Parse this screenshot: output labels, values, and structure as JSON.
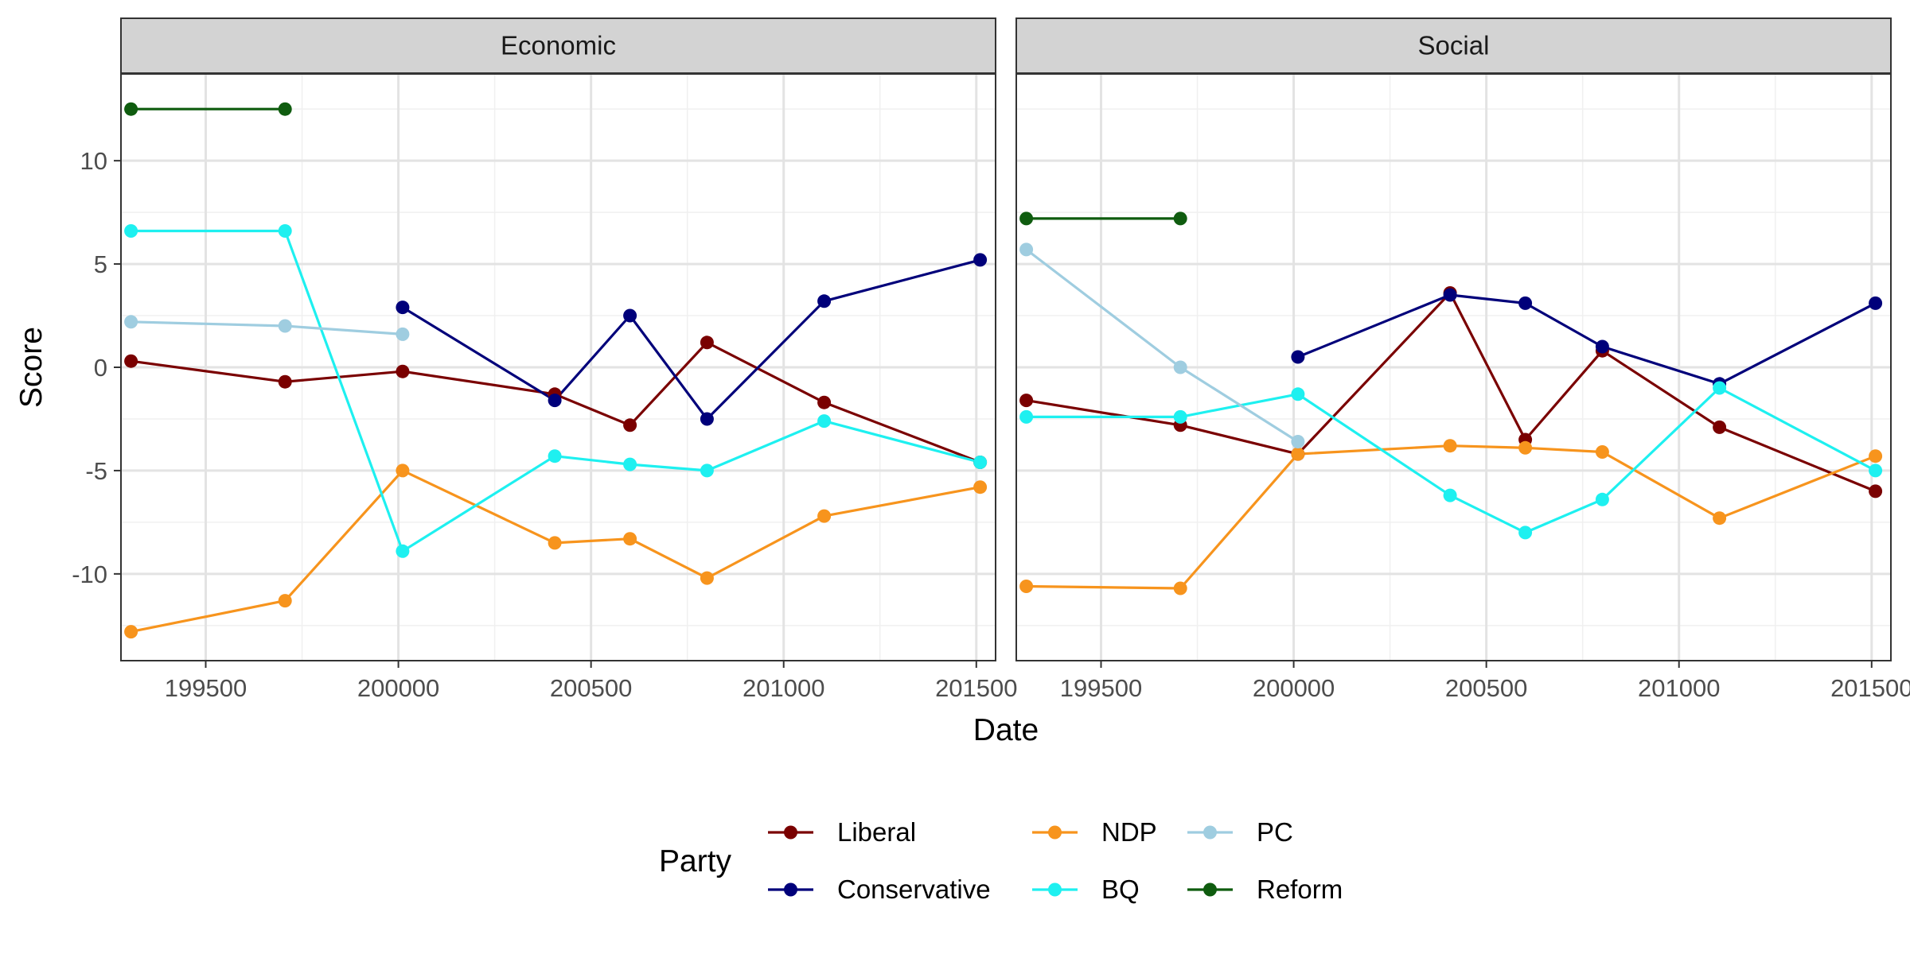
{
  "chart_data": {
    "type": "line",
    "xlabel": "Date",
    "ylabel": "Score",
    "xlim": [
      199280,
      201550
    ],
    "ylim": [
      -14.2,
      14.2
    ],
    "xticks": [
      199500,
      200000,
      200500,
      201000,
      201500
    ],
    "yticks": [
      -10,
      -5,
      0,
      5,
      10
    ],
    "grid": true,
    "legend": {
      "title": "Party",
      "position": "bottom",
      "items": [
        "Liberal",
        "Conservative",
        "NDP",
        "BQ",
        "PC",
        "Reform"
      ]
    },
    "panels": [
      {
        "title": "Economic",
        "series": [
          {
            "name": "Liberal",
            "color": "#7a0000",
            "x": [
              199306,
              199706,
              200011,
              200406,
              200601,
              200801,
              201105,
              201510
            ],
            "y": [
              0.3,
              -0.7,
              -0.2,
              -1.3,
              -2.8,
              1.2,
              -1.7,
              -4.6
            ]
          },
          {
            "name": "Conservative",
            "color": "#00007a",
            "x": [
              200011,
              200406,
              200601,
              200801,
              201105,
              201510
            ],
            "y": [
              2.9,
              -1.6,
              2.5,
              -2.5,
              3.2,
              5.2
            ]
          },
          {
            "name": "NDP",
            "color": "#f7941d",
            "x": [
              199306,
              199706,
              200011,
              200406,
              200601,
              200801,
              201105,
              201510
            ],
            "y": [
              -12.8,
              -11.3,
              -5.0,
              -8.5,
              -8.3,
              -10.2,
              -7.2,
              -5.8
            ]
          },
          {
            "name": "BQ",
            "color": "#1ef0f0",
            "x": [
              199306,
              199706,
              200011,
              200406,
              200601,
              200801,
              201105,
              201510
            ],
            "y": [
              6.6,
              6.6,
              -8.9,
              -4.3,
              -4.7,
              -5.0,
              -2.6,
              -4.6
            ]
          },
          {
            "name": "PC",
            "color": "#9fcde0",
            "x": [
              199306,
              199706,
              200011
            ],
            "y": [
              2.2,
              2.0,
              1.6
            ]
          },
          {
            "name": "Reform",
            "color": "#0f5c0f",
            "x": [
              199306,
              199706
            ],
            "y": [
              12.5,
              12.5
            ]
          }
        ]
      },
      {
        "title": "Social",
        "series": [
          {
            "name": "Liberal",
            "color": "#7a0000",
            "x": [
              199306,
              199706,
              200011,
              200406,
              200601,
              200801,
              201105,
              201510
            ],
            "y": [
              -1.6,
              -2.8,
              -4.2,
              3.6,
              -3.5,
              0.8,
              -2.9,
              -6.0
            ]
          },
          {
            "name": "Conservative",
            "color": "#00007a",
            "x": [
              200011,
              200406,
              200601,
              200801,
              201105,
              201510
            ],
            "y": [
              0.5,
              3.5,
              3.1,
              1.0,
              -0.8,
              3.1
            ]
          },
          {
            "name": "NDP",
            "color": "#f7941d",
            "x": [
              199306,
              199706,
              200011,
              200406,
              200601,
              200801,
              201105,
              201510
            ],
            "y": [
              -10.6,
              -10.7,
              -4.2,
              -3.8,
              -3.9,
              -4.1,
              -7.3,
              -4.3
            ]
          },
          {
            "name": "BQ",
            "color": "#1ef0f0",
            "x": [
              199306,
              199706,
              200011,
              200406,
              200601,
              200801,
              201105,
              201510
            ],
            "y": [
              -2.4,
              -2.4,
              -1.3,
              -6.2,
              -8.0,
              -6.4,
              -1.0,
              -5.0
            ]
          },
          {
            "name": "PC",
            "color": "#9fcde0",
            "x": [
              199306,
              199706,
              200011
            ],
            "y": [
              5.7,
              0.0,
              -3.6
            ]
          },
          {
            "name": "Reform",
            "color": "#0f5c0f",
            "x": [
              199306,
              199706
            ],
            "y": [
              7.2,
              7.2
            ]
          }
        ]
      }
    ]
  }
}
